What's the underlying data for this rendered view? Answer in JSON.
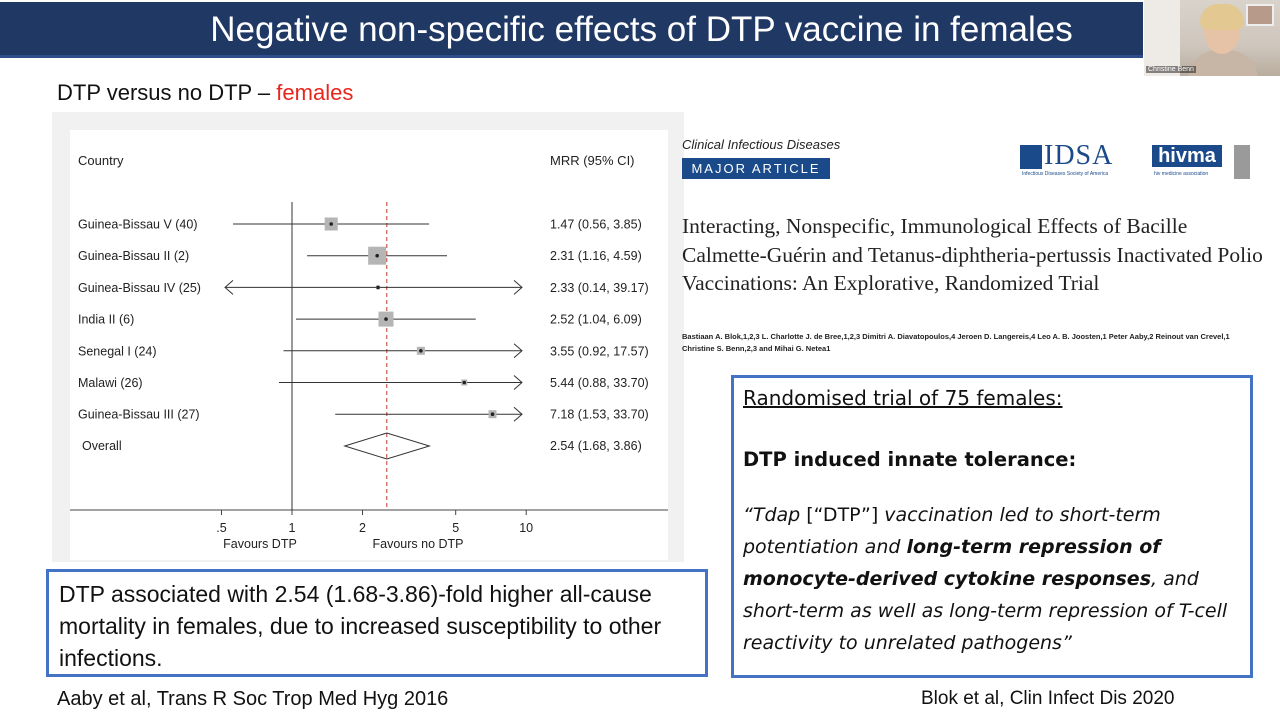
{
  "slide": {
    "title": "Negative non-specific effects of DTP vaccine in females",
    "subtitle_prefix": "DTP versus no DTP – ",
    "subtitle_highlight": "females",
    "highlight_color": "#e8261c",
    "title_bg_color": "#1f3864",
    "box_border_color": "#4472c4"
  },
  "video": {
    "speaker_name": "Christine Benn"
  },
  "forest_plot": {
    "header_country": "Country",
    "header_mrr": "MRR (95% CI)",
    "left_caption": "Favours DTP",
    "right_caption": "Favours no DTP",
    "overall_label": "Overall",
    "overall_value": "2.54 (1.68, 3.86)"
  },
  "chart_data": {
    "type": "forest",
    "x_scale": "log",
    "xlim": [
      0.35,
      10
    ],
    "x_ticks": [
      0.5,
      1,
      2,
      5,
      10
    ],
    "x_tick_labels": [
      ".5",
      "1",
      "2",
      "5",
      "10"
    ],
    "reference_line": 1,
    "pooled_line": 2.54,
    "studies": [
      {
        "label": "Guinea-Bissau V (40)",
        "mrr": 1.47,
        "lo": 0.56,
        "hi": 3.85,
        "ci_text": "1.47 (0.56, 3.85)"
      },
      {
        "label": "Guinea-Bissau II (2)",
        "mrr": 2.31,
        "lo": 1.16,
        "hi": 4.59,
        "ci_text": "2.31 (1.16, 4.59)"
      },
      {
        "label": "Guinea-Bissau IV (25)",
        "mrr": 2.33,
        "lo": 0.14,
        "hi": 39.17,
        "ci_text": "2.33 (0.14, 39.17)"
      },
      {
        "label": "India II (6)",
        "mrr": 2.52,
        "lo": 1.04,
        "hi": 6.09,
        "ci_text": "2.52 (1.04, 6.09)"
      },
      {
        "label": "Senegal I (24)",
        "mrr": 3.55,
        "lo": 0.92,
        "hi": 17.57,
        "ci_text": "3.55 (0.92, 17.57)"
      },
      {
        "label": "Malawi (26)",
        "mrr": 5.44,
        "lo": 0.88,
        "hi": 33.7,
        "ci_text": "5.44 (0.88, 33.70)"
      },
      {
        "label": "Guinea-Bissau III (27)",
        "mrr": 7.18,
        "lo": 1.53,
        "hi": 33.7,
        "ci_text": "7.18 (1.53, 33.70)"
      }
    ],
    "overall": {
      "mrr": 2.54,
      "lo": 1.68,
      "hi": 3.86
    }
  },
  "article": {
    "journal": "Clinical Infectious Diseases",
    "badge": "MAJOR ARTICLE",
    "idsa_logo_text": "IDSA",
    "idsa_logo_sub": "Infectious Diseases Society of America",
    "hivma_logo_text": "hivma",
    "hivma_logo_sub": "hiv medicine association",
    "title": "Interacting, Nonspecific, Immunological Effects of Bacille Calmette-Guérin and Tetanus-diphtheria-pertussis Inactivated Polio Vaccinations: An Explorative, Randomized Trial",
    "authors": "Bastiaan A. Blok,1,2,3 L. Charlotte J. de Bree,1,2,3 Dimitri A. Diavatopoulos,4 Jeroen D. Langereis,4 Leo A. B. Joosten,1 Peter Aaby,2 Reinout van Crevel,1 Christine S. Benn,2,3 and Mihai G. Netea1"
  },
  "trial_box": {
    "heading": "Randomised trial of 75 females:",
    "bold": "DTP induced innate tolerance:",
    "quote_part1": "“Tdap ",
    "quote_dtp": "[“DTP”]",
    "quote_part2": " vaccination led to short-term potentiation and ",
    "quote_bold": "long-term repression of monocyte-derived cytokine responses",
    "quote_part3": ", and short-term as well as long-term repression of T-cell reactivity to unrelated pathogens”"
  },
  "mortality_box": {
    "text": "DTP associated with 2.54 (1.68-3.86)-fold higher all-cause mortality in females, due to increased susceptibility to other infections."
  },
  "references": {
    "left": "Aaby et al, Trans R Soc Trop Med Hyg 2016",
    "right": "Blok et al, Clin Infect Dis 2020"
  }
}
